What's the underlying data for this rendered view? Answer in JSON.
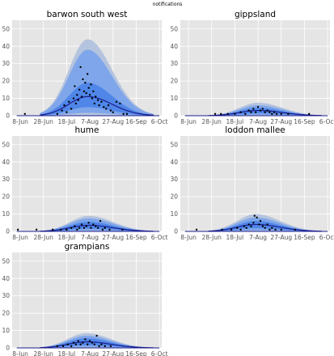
{
  "suptitle": "notifications",
  "colors": {
    "panel_bg": "#e5e5e5",
    "grid": "#ffffff",
    "band_outer": "#b5c4de",
    "band_mid": "#7fa6ea",
    "band_inner": "#4f86e8",
    "median": "#1c1c8c",
    "points": "#000000"
  },
  "chart_data": {
    "type": "area",
    "ylim": [
      0,
      55
    ],
    "yticks": [
      0,
      10,
      20,
      30,
      40,
      50
    ],
    "xlim": [
      "2020-06-01",
      "2020-10-08"
    ],
    "xtick_labels": [
      "8-Jun",
      "28-Jun",
      "18-Jul",
      "7-Aug",
      "27-Aug",
      "16-Sep",
      "6-Oct"
    ],
    "xtick_dates": [
      "2020-06-08",
      "2020-06-28",
      "2020-07-18",
      "2020-08-07",
      "2020-08-27",
      "2020-09-16",
      "2020-10-06"
    ],
    "panels": [
      {
        "title": "barwon south west",
        "peak_date": "2020-08-05",
        "peak": {
          "p50": 11,
          "p75": 19,
          "p95": 38,
          "p99": 44
        },
        "observed": [
          {
            "x": "2020-06-12",
            "y": 1
          },
          {
            "x": "2020-07-10",
            "y": 1
          },
          {
            "x": "2020-07-14",
            "y": 3
          },
          {
            "x": "2020-07-16",
            "y": 6
          },
          {
            "x": "2020-07-18",
            "y": 2
          },
          {
            "x": "2020-07-20",
            "y": 8
          },
          {
            "x": "2020-07-22",
            "y": 4
          },
          {
            "x": "2020-07-24",
            "y": 10
          },
          {
            "x": "2020-07-25",
            "y": 17
          },
          {
            "x": "2020-07-26",
            "y": 7
          },
          {
            "x": "2020-07-27",
            "y": 12
          },
          {
            "x": "2020-07-28",
            "y": 9
          },
          {
            "x": "2020-07-29",
            "y": 15
          },
          {
            "x": "2020-07-30",
            "y": 28
          },
          {
            "x": "2020-07-31",
            "y": 11
          },
          {
            "x": "2020-08-01",
            "y": 21
          },
          {
            "x": "2020-08-02",
            "y": 14
          },
          {
            "x": "2020-08-03",
            "y": 19
          },
          {
            "x": "2020-08-04",
            "y": 13
          },
          {
            "x": "2020-08-05",
            "y": 24
          },
          {
            "x": "2020-08-06",
            "y": 16
          },
          {
            "x": "2020-08-07",
            "y": 12
          },
          {
            "x": "2020-08-08",
            "y": 18
          },
          {
            "x": "2020-08-09",
            "y": 10
          },
          {
            "x": "2020-08-10",
            "y": 14
          },
          {
            "x": "2020-08-11",
            "y": 7
          },
          {
            "x": "2020-08-12",
            "y": 11
          },
          {
            "x": "2020-08-14",
            "y": 9
          },
          {
            "x": "2020-08-15",
            "y": 6
          },
          {
            "x": "2020-08-17",
            "y": 8
          },
          {
            "x": "2020-08-19",
            "y": 5
          },
          {
            "x": "2020-08-21",
            "y": 4
          },
          {
            "x": "2020-08-23",
            "y": 6
          },
          {
            "x": "2020-08-25",
            "y": 3
          },
          {
            "x": "2020-08-27",
            "y": 2
          },
          {
            "x": "2020-08-30",
            "y": 8
          },
          {
            "x": "2020-09-02",
            "y": 7
          },
          {
            "x": "2020-09-05",
            "y": 1
          },
          {
            "x": "2020-09-08",
            "y": 1
          }
        ]
      },
      {
        "title": "gippsland",
        "peak_date": "2020-08-07",
        "peak": {
          "p50": 3,
          "p75": 4.5,
          "p95": 6,
          "p99": 7.5
        },
        "observed": [
          {
            "x": "2020-07-01",
            "y": 1
          },
          {
            "x": "2020-07-06",
            "y": 1
          },
          {
            "x": "2020-07-12",
            "y": 1
          },
          {
            "x": "2020-07-18",
            "y": 1
          },
          {
            "x": "2020-07-23",
            "y": 2
          },
          {
            "x": "2020-07-27",
            "y": 1
          },
          {
            "x": "2020-07-30",
            "y": 3
          },
          {
            "x": "2020-08-01",
            "y": 2
          },
          {
            "x": "2020-08-03",
            "y": 4
          },
          {
            "x": "2020-08-05",
            "y": 2
          },
          {
            "x": "2020-08-07",
            "y": 5
          },
          {
            "x": "2020-08-09",
            "y": 3
          },
          {
            "x": "2020-08-11",
            "y": 4
          },
          {
            "x": "2020-08-13",
            "y": 2
          },
          {
            "x": "2020-08-15",
            "y": 3
          },
          {
            "x": "2020-08-17",
            "y": 2
          },
          {
            "x": "2020-08-19",
            "y": 1
          },
          {
            "x": "2020-08-21",
            "y": 2
          },
          {
            "x": "2020-08-23",
            "y": 1
          },
          {
            "x": "2020-08-27",
            "y": 1
          },
          {
            "x": "2020-09-02",
            "y": 1
          },
          {
            "x": "2020-09-20",
            "y": 1
          }
        ]
      },
      {
        "title": "hume",
        "peak_date": "2020-08-06",
        "peak": {
          "p50": 3.5,
          "p75": 5.5,
          "p95": 7.5,
          "p99": 9
        },
        "observed": [
          {
            "x": "2020-06-06",
            "y": 1
          },
          {
            "x": "2020-06-22",
            "y": 1
          },
          {
            "x": "2020-07-06",
            "y": 1
          },
          {
            "x": "2020-07-13",
            "y": 1
          },
          {
            "x": "2020-07-18",
            "y": 1
          },
          {
            "x": "2020-07-22",
            "y": 2
          },
          {
            "x": "2020-07-25",
            "y": 3
          },
          {
            "x": "2020-07-27",
            "y": 1
          },
          {
            "x": "2020-07-29",
            "y": 2
          },
          {
            "x": "2020-07-31",
            "y": 4
          },
          {
            "x": "2020-08-02",
            "y": 2
          },
          {
            "x": "2020-08-04",
            "y": 3
          },
          {
            "x": "2020-08-06",
            "y": 5
          },
          {
            "x": "2020-08-08",
            "y": 2
          },
          {
            "x": "2020-08-10",
            "y": 4
          },
          {
            "x": "2020-08-12",
            "y": 3
          },
          {
            "x": "2020-08-14",
            "y": 2
          },
          {
            "x": "2020-08-16",
            "y": 6
          },
          {
            "x": "2020-08-18",
            "y": 1
          },
          {
            "x": "2020-08-20",
            "y": 2
          },
          {
            "x": "2020-08-24",
            "y": 1
          },
          {
            "x": "2020-09-04",
            "y": 1
          }
        ]
      },
      {
        "title": "loddon mallee",
        "peak_date": "2020-08-05",
        "peak": {
          "p50": 4,
          "p75": 6,
          "p95": 8,
          "p99": 10
        },
        "observed": [
          {
            "x": "2020-06-15",
            "y": 1
          },
          {
            "x": "2020-07-07",
            "y": 1
          },
          {
            "x": "2020-07-15",
            "y": 1
          },
          {
            "x": "2020-07-20",
            "y": 2
          },
          {
            "x": "2020-07-23",
            "y": 1
          },
          {
            "x": "2020-07-26",
            "y": 3
          },
          {
            "x": "2020-07-28",
            "y": 2
          },
          {
            "x": "2020-07-30",
            "y": 4
          },
          {
            "x": "2020-08-01",
            "y": 3
          },
          {
            "x": "2020-08-03",
            "y": 5
          },
          {
            "x": "2020-08-04",
            "y": 9
          },
          {
            "x": "2020-08-06",
            "y": 8
          },
          {
            "x": "2020-08-08",
            "y": 4
          },
          {
            "x": "2020-08-09",
            "y": 6
          },
          {
            "x": "2020-08-11",
            "y": 3
          },
          {
            "x": "2020-08-13",
            "y": 2
          },
          {
            "x": "2020-08-15",
            "y": 4
          },
          {
            "x": "2020-08-17",
            "y": 1
          },
          {
            "x": "2020-08-19",
            "y": 2
          },
          {
            "x": "2020-08-22",
            "y": 1
          },
          {
            "x": "2020-08-27",
            "y": 1
          },
          {
            "x": "2020-09-08",
            "y": 1
          }
        ]
      },
      {
        "title": "grampians",
        "peak_date": "2020-08-04",
        "peak": {
          "p50": 3.5,
          "p75": 5.5,
          "p95": 7,
          "p99": 8.5
        },
        "observed": [
          {
            "x": "2020-07-10",
            "y": 1
          },
          {
            "x": "2020-07-15",
            "y": 1
          },
          {
            "x": "2020-07-19",
            "y": 2
          },
          {
            "x": "2020-07-22",
            "y": 1
          },
          {
            "x": "2020-07-24",
            "y": 3
          },
          {
            "x": "2020-07-26",
            "y": 2
          },
          {
            "x": "2020-07-28",
            "y": 4
          },
          {
            "x": "2020-07-30",
            "y": 2
          },
          {
            "x": "2020-08-01",
            "y": 3
          },
          {
            "x": "2020-08-03",
            "y": 5
          },
          {
            "x": "2020-08-05",
            "y": 2
          },
          {
            "x": "2020-08-07",
            "y": 4
          },
          {
            "x": "2020-08-09",
            "y": 3
          },
          {
            "x": "2020-08-11",
            "y": 2
          },
          {
            "x": "2020-08-13",
            "y": 7
          },
          {
            "x": "2020-08-15",
            "y": 1
          },
          {
            "x": "2020-08-17",
            "y": 2
          },
          {
            "x": "2020-08-20",
            "y": 1
          },
          {
            "x": "2020-08-25",
            "y": 1
          }
        ]
      }
    ]
  }
}
